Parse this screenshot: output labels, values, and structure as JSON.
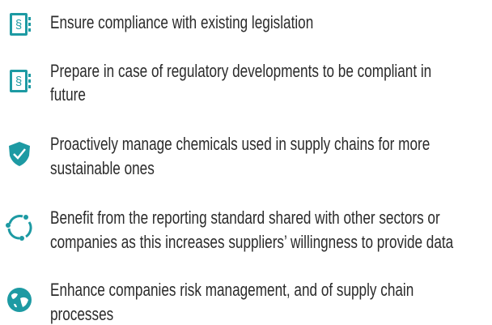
{
  "items": [
    {
      "lines": [
        "Ensure compliance with existing legislation"
      ]
    },
    {
      "lines": [
        "Prepare in case of regulatory developments to be compliant in",
        "future"
      ]
    },
    {
      "lines": [
        "Proactively manage chemicals used in supply chains for more",
        "sustainable ones"
      ]
    },
    {
      "lines": [
        "Benefit from the reporting standard shared with other sectors or",
        "companies as this increases suppliers’ willingness to provide data"
      ]
    },
    {
      "lines": [
        "Enhance companies risk management, and of supply chain",
        "processes"
      ]
    }
  ]
}
